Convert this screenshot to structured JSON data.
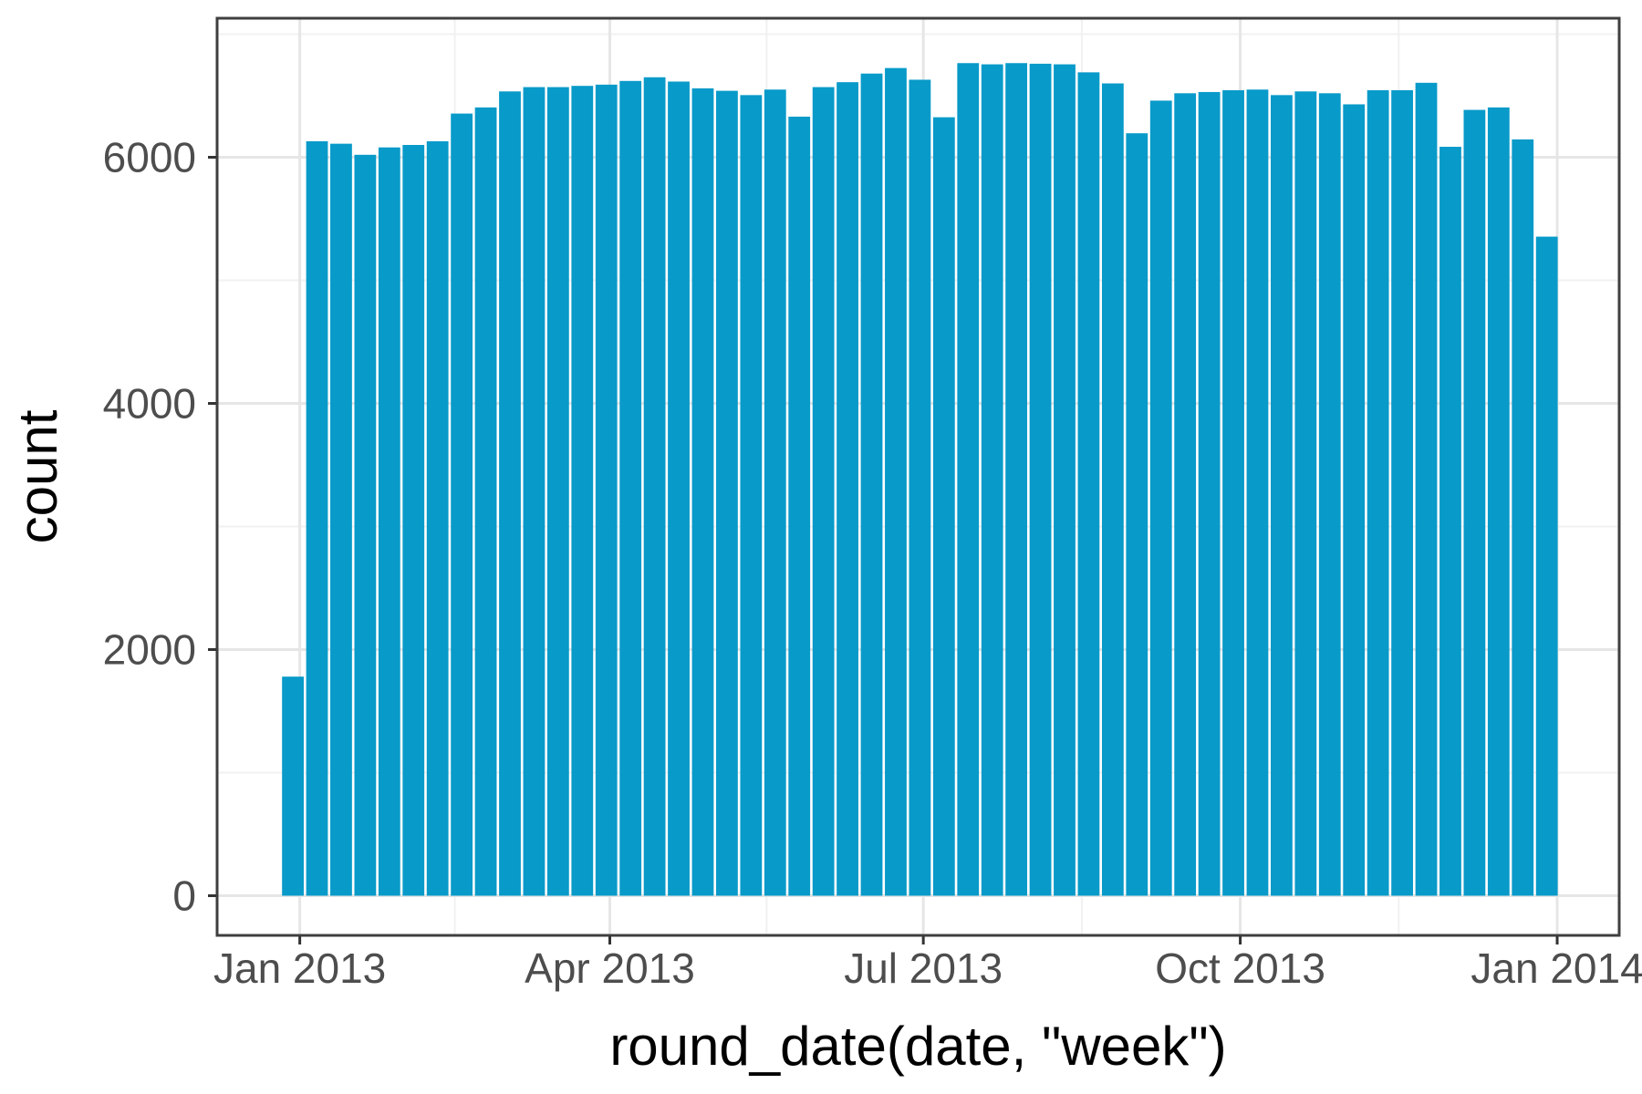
{
  "figure": {
    "background": "#FFFFFF",
    "panel_border_color": "#3F3F3F",
    "grid_major_color": "#E6E6E6",
    "grid_minor_color": "#F1F1F1",
    "tick_label_color": "#4D4D4D",
    "tick_mark_color": "#333333",
    "axis_title_color": "#000000"
  },
  "chart_data": {
    "type": "bar",
    "title": "",
    "xlabel": "round_date(date, \"week\")",
    "ylabel": "count",
    "legend_position": "none",
    "grid": true,
    "bar_color": "#089AC9",
    "bar_width_days": 6.3,
    "x_axis": {
      "tick_labels": [
        "Jan 2013",
        "Apr 2013",
        "Jul 2013",
        "Oct 2013",
        "Jan 2014"
      ],
      "tick_dates": [
        "2013-01-01",
        "2013-04-01",
        "2013-07-01",
        "2013-10-01",
        "2014-01-01"
      ],
      "domain_start": "2012-12-08",
      "domain_days": 407
    },
    "y_axis": {
      "tick_labels": [
        "0",
        "2000",
        "4000",
        "6000"
      ],
      "tick_values": [
        0,
        2000,
        4000,
        6000
      ],
      "minor_values": [
        1000,
        3000,
        5000,
        7000
      ],
      "ylim": [
        0,
        7100
      ]
    },
    "categories": [
      "2012-12-30",
      "2013-01-06",
      "2013-01-13",
      "2013-01-20",
      "2013-01-27",
      "2013-02-03",
      "2013-02-10",
      "2013-02-17",
      "2013-02-24",
      "2013-03-03",
      "2013-03-10",
      "2013-03-17",
      "2013-03-24",
      "2013-03-31",
      "2013-04-07",
      "2013-04-14",
      "2013-04-21",
      "2013-04-28",
      "2013-05-05",
      "2013-05-12",
      "2013-05-19",
      "2013-05-26",
      "2013-06-02",
      "2013-06-09",
      "2013-06-16",
      "2013-06-23",
      "2013-06-30",
      "2013-07-07",
      "2013-07-14",
      "2013-07-21",
      "2013-07-28",
      "2013-08-04",
      "2013-08-11",
      "2013-08-18",
      "2013-08-25",
      "2013-09-01",
      "2013-09-08",
      "2013-09-15",
      "2013-09-22",
      "2013-09-29",
      "2013-10-06",
      "2013-10-13",
      "2013-10-20",
      "2013-10-27",
      "2013-11-03",
      "2013-11-10",
      "2013-11-17",
      "2013-11-24",
      "2013-12-01",
      "2013-12-08",
      "2013-12-15",
      "2013-12-22",
      "2013-12-29"
    ],
    "values": [
      1780,
      6130,
      6110,
      6020,
      6080,
      6100,
      6130,
      6355,
      6405,
      6535,
      6570,
      6570,
      6580,
      6590,
      6620,
      6650,
      6615,
      6560,
      6540,
      6505,
      6550,
      6330,
      6570,
      6610,
      6680,
      6725,
      6630,
      6325,
      6765,
      6755,
      6765,
      6760,
      6755,
      6690,
      6600,
      6195,
      6460,
      6520,
      6530,
      6545,
      6550,
      6505,
      6535,
      6520,
      6430,
      6545,
      6545,
      6605,
      6085,
      6385,
      6405,
      6145,
      5355
    ]
  }
}
